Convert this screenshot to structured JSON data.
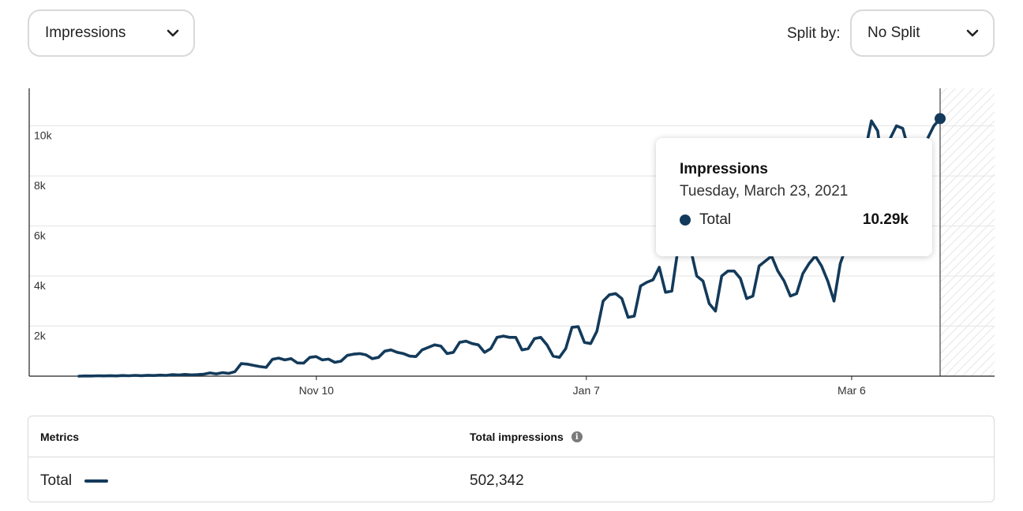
{
  "controls": {
    "metric_dropdown": {
      "value": "Impressions"
    },
    "split_label": "Split by:",
    "split_dropdown": {
      "value": "No Split"
    }
  },
  "colors": {
    "series": "#133a5a",
    "grid": "#e4e4e4",
    "axis": "#222222"
  },
  "tooltip": {
    "title": "Impressions",
    "date": "Tuesday, March 23, 2021",
    "series_name": "Total",
    "value": "10.29k"
  },
  "table": {
    "headers": {
      "metrics": "Metrics",
      "total_impressions": "Total impressions"
    },
    "info_icon": "info-icon",
    "rows": [
      {
        "name": "Total",
        "value": "502,342"
      }
    ]
  },
  "chart_data": {
    "type": "line",
    "series_name": "Total",
    "x_tick_labels": [
      "Nov 10",
      "Jan 7",
      "Mar 6"
    ],
    "y_tick_labels": [
      "2k",
      "4k",
      "6k",
      "8k",
      "10k"
    ],
    "y_tick_values": [
      2000,
      4000,
      6000,
      8000,
      10000
    ],
    "ylim": [
      0,
      11500
    ],
    "x_range_days": [
      0,
      173
    ],
    "x_tick_days": [
      51,
      109,
      166
    ],
    "highlight": {
      "day": 185,
      "value": 10290
    },
    "future_region_start_day": 185,
    "grid": true,
    "values": [
      0,
      10,
      5,
      15,
      10,
      20,
      10,
      25,
      15,
      30,
      20,
      35,
      25,
      40,
      30,
      60,
      45,
      70,
      50,
      60,
      80,
      130,
      90,
      140,
      110,
      180,
      500,
      480,
      430,
      380,
      350,
      670,
      720,
      650,
      700,
      530,
      520,
      750,
      780,
      650,
      680,
      550,
      600,
      830,
      880,
      900,
      850,
      700,
      750,
      1000,
      1050,
      950,
      900,
      800,
      780,
      1050,
      1150,
      1250,
      1200,
      900,
      950,
      1350,
      1400,
      1300,
      1250,
      950,
      1100,
      1550,
      1600,
      1550,
      1550,
      1050,
      1100,
      1500,
      1550,
      1250,
      800,
      750,
      1100,
      1950,
      1980,
      1350,
      1300,
      1800,
      3000,
      3250,
      3300,
      3100,
      2350,
      2400,
      3600,
      3750,
      3850,
      4350,
      3350,
      3400,
      5100,
      5300,
      5100,
      4000,
      3800,
      2900,
      2600,
      4000,
      4200,
      4200,
      3900,
      3100,
      3200,
      4400,
      4600,
      4800,
      4200,
      3800,
      3200,
      3300,
      4100,
      4500,
      4800,
      4400,
      3800,
      3000,
      4500,
      5200,
      6500,
      8000,
      9000,
      10200,
      9800,
      8000,
      9500,
      10000,
      9900,
      9000,
      7500,
      8000,
      9500,
      10000,
      10290
    ]
  }
}
